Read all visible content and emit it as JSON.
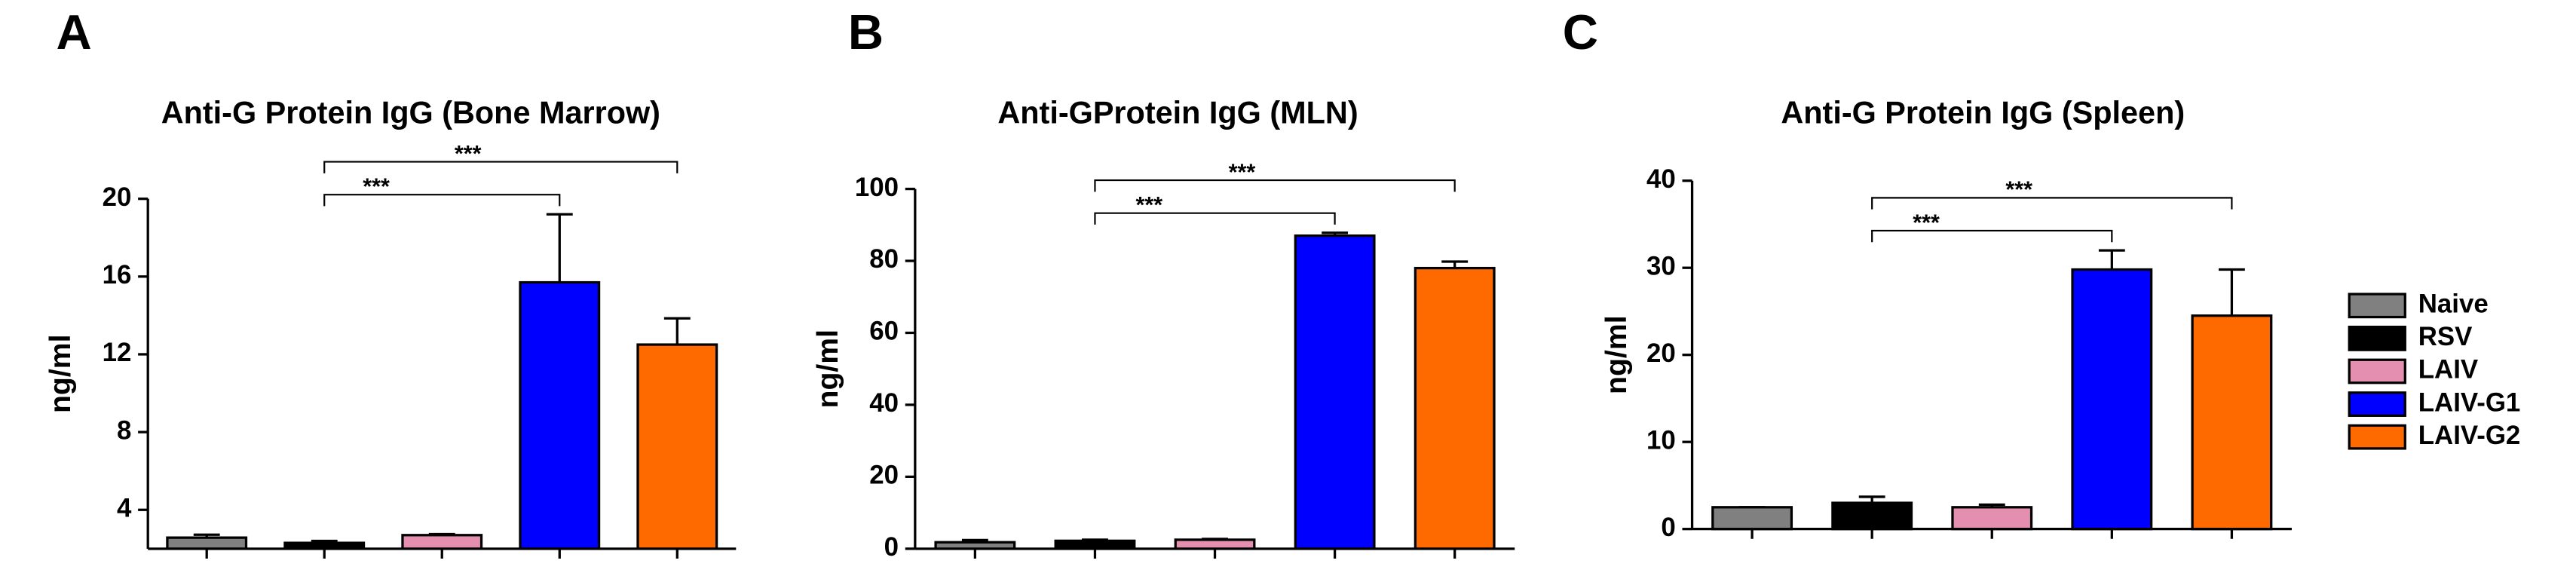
{
  "legend": {
    "labels": [
      "Naive",
      "RSV",
      "LAIV",
      "LAIV-G1",
      "LAIV-G2"
    ],
    "colors": [
      "#808080",
      "#000000",
      "#e58fb0",
      "#0000ff",
      "#ff6a00"
    ]
  },
  "chart_data": [
    {
      "type": "bar",
      "panel": "A",
      "title": "Anti-G Protein IgG (Bone Marrow)",
      "y_label": "ng/ml",
      "values": [
        2.57,
        2.3,
        2.7,
        15.7,
        12.5
      ],
      "errors": [
        0.15,
        0.1,
        0.05,
        3.5,
        1.35
      ],
      "ylim": [
        2,
        20
      ],
      "yticks": [
        4,
        8,
        12,
        16,
        20
      ],
      "comparisons": [
        {
          "label": "***",
          "between": [
            "RSV",
            "LAIV-G1"
          ]
        },
        {
          "label": "***",
          "between": [
            "RSV",
            "LAIV-G2"
          ]
        }
      ]
    },
    {
      "type": "bar",
      "panel": "B",
      "title": "Anti-GProtein IgG (MLN)",
      "y_label": "ng/ml",
      "values": [
        1.8,
        2.2,
        2.5,
        87,
        78
      ],
      "errors": [
        0.6,
        0.3,
        0.2,
        0.8,
        1.8
      ],
      "ylim": [
        0,
        100
      ],
      "yticks": [
        0,
        20,
        40,
        60,
        80,
        100
      ],
      "comparisons": [
        {
          "label": "***",
          "between": [
            "RSV",
            "LAIV-G1"
          ]
        },
        {
          "label": "***",
          "between": [
            "RSV",
            "LAIV-G2"
          ]
        }
      ]
    },
    {
      "type": "bar",
      "panel": "C",
      "title": "Anti-G Protein IgG (Spleen)",
      "y_label": "ng/ml",
      "values": [
        2.5,
        3,
        2.5,
        29.8,
        24.5
      ],
      "errors": [
        0,
        0.7,
        0.3,
        2.2,
        5.3
      ],
      "ylim": [
        0,
        40
      ],
      "yticks": [
        0,
        10,
        20,
        30,
        40
      ],
      "comparisons": [
        {
          "label": "***",
          "between": [
            "RSV",
            "LAIV-G1"
          ]
        },
        {
          "label": "***",
          "between": [
            "RSV",
            "LAIV-G2"
          ]
        }
      ]
    }
  ]
}
